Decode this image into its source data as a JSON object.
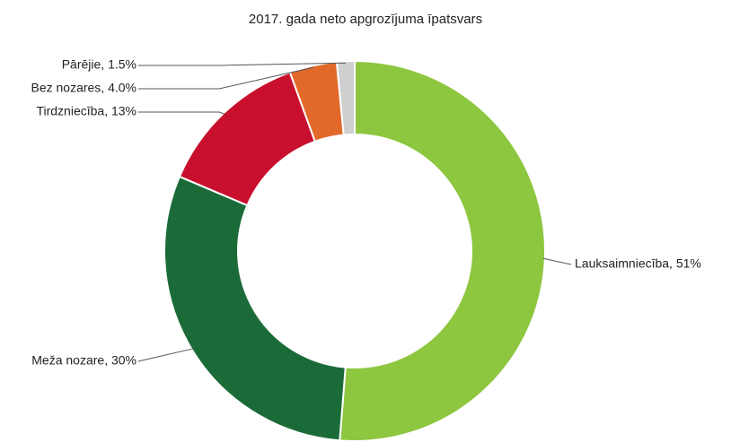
{
  "chart_data": {
    "type": "donut",
    "title": "2017. gada neto apgrozījuma īpatsvars",
    "labels": [
      "Lauksaimniecība, 51%",
      "Meža nozare, 30%",
      "Tirdzniecība, 13%",
      "Bez nozares, 4.0%",
      "Pārējie, 1.5%"
    ],
    "values": [
      51,
      30,
      13,
      4.0,
      1.5
    ],
    "colors": [
      "#8dc63f",
      "#1b6b38",
      "#c8102e",
      "#e2692a",
      "#cfcfcf"
    ]
  }
}
